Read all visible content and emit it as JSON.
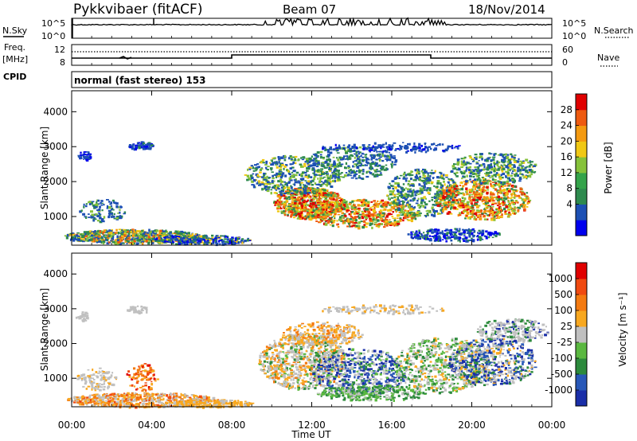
{
  "header": {
    "radar": "Pykkvibaer (fitACF)",
    "beam": "Beam 07",
    "date": "18/Nov/2014"
  },
  "strips": {
    "nsky": {
      "label": "N.Sky",
      "ticks": [
        "10^5",
        "10^0"
      ],
      "right_label": "N.Search",
      "right_ticks": [
        "10^5",
        "10^0"
      ]
    },
    "freq": {
      "label_line1": "Freq.",
      "label_line2": "[MHz]",
      "ticks": [
        "12",
        "8"
      ],
      "right_label": "Nave",
      "right_ticks": [
        "60",
        "0"
      ]
    },
    "cpid": {
      "label": "CPID",
      "value": "normal (fast stereo) 153"
    }
  },
  "chart_data": [
    {
      "type": "heatmap",
      "title": "",
      "ylabel": "Slant Range [km]",
      "yticks": [
        "4000",
        "3000",
        "2000",
        "1000"
      ],
      "ylim": [
        180,
        4600
      ],
      "xlim": [
        "00:00",
        "24:00"
      ],
      "colorbar": {
        "label": "Power [dB]",
        "ticks": [
          "28",
          "24",
          "20",
          "16",
          "12",
          "8",
          "4"
        ],
        "colors": [
          "#0000ee",
          "#1d50b4",
          "#2e8a4e",
          "#34a34a",
          "#86c23a",
          "#f0c814",
          "#f49a10",
          "#ee5a10",
          "#e00000"
        ],
        "range": [
          0,
          32
        ]
      }
    },
    {
      "type": "heatmap",
      "title": "",
      "ylabel": "Slant Range [km]",
      "yticks": [
        "4000",
        "3000",
        "2000",
        "1000"
      ],
      "ylim": [
        180,
        4600
      ],
      "xlim": [
        "00:00",
        "24:00"
      ],
      "xlabel": "Time UT",
      "xticks": [
        "00:00",
        "04:00",
        "08:00",
        "12:00",
        "16:00",
        "20:00",
        "00:00"
      ],
      "colorbar": {
        "label": "Velocity [m s⁻¹]",
        "ticks": [
          "1000",
          "500",
          "100",
          "25",
          "-25",
          "-100",
          "-500",
          "-1000"
        ],
        "colors": [
          "#1a2ea8",
          "#2858b8",
          "#2c8a3c",
          "#5ab840",
          "#c0c0c0",
          "#f8a820",
          "#f47a10",
          "#f04a10",
          "#e00000"
        ],
        "range": [
          -1200,
          1200
        ]
      }
    }
  ]
}
